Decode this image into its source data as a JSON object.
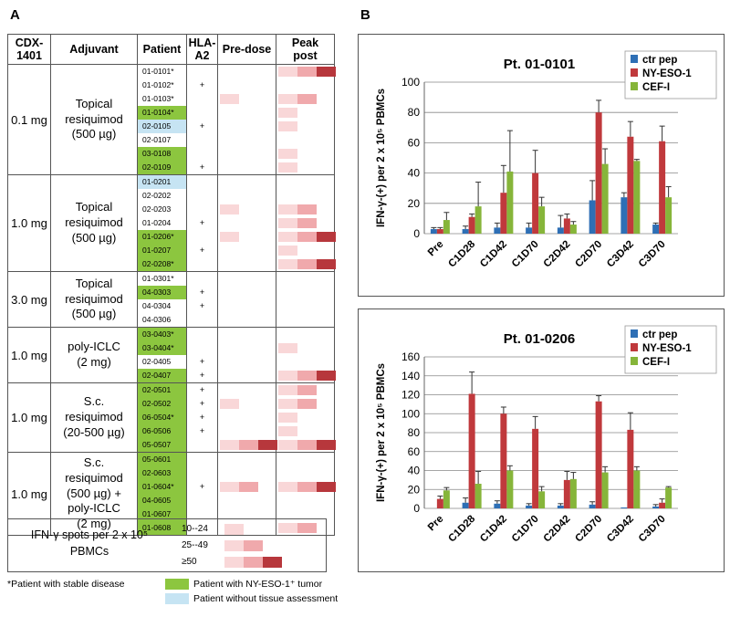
{
  "panel_a_label": "A",
  "panel_b_label": "B",
  "table": {
    "headers": {
      "dose": "CDX-\n1401",
      "adjuvant": "Adjuvant",
      "patient": "Patient",
      "hla": "HLA-\nA2",
      "predose": "Pre-dose",
      "peak": "Peak\npost"
    },
    "cohorts": [
      {
        "dose": "0.1 mg",
        "adjuvant": "Topical\nresiquimod\n(500 µg)",
        "patients": [
          {
            "id": "01-0101*",
            "hla": "",
            "color": "",
            "pre": 0,
            "peak": 3
          },
          {
            "id": "01-0102*",
            "hla": "+",
            "color": "",
            "pre": 0,
            "peak": 0
          },
          {
            "id": "01-0103*",
            "hla": "",
            "color": "",
            "pre": 1,
            "peak": 2
          },
          {
            "id": "01-0104*",
            "hla": "",
            "color": "green",
            "pre": 0,
            "peak": 1
          },
          {
            "id": "02-0105",
            "hla": "+",
            "color": "blue",
            "pre": 0,
            "peak": 1
          },
          {
            "id": "02-0107",
            "hla": "",
            "color": "",
            "pre": 0,
            "peak": 0
          },
          {
            "id": "03-0108",
            "hla": "",
            "color": "green",
            "pre": 0,
            "peak": 1
          },
          {
            "id": "02-0109",
            "hla": "+",
            "color": "green",
            "pre": 0,
            "peak": 1
          }
        ]
      },
      {
        "dose": "1.0 mg",
        "adjuvant": "Topical\nresiquimod\n(500 µg)",
        "patients": [
          {
            "id": "01-0201",
            "hla": "",
            "color": "blue",
            "pre": 0,
            "peak": 0
          },
          {
            "id": "02-0202",
            "hla": "",
            "color": "",
            "pre": 0,
            "peak": 0
          },
          {
            "id": "02-0203",
            "hla": "",
            "color": "",
            "pre": 1,
            "peak": 2
          },
          {
            "id": "01-0204",
            "hla": "+",
            "color": "",
            "pre": 0,
            "peak": 2
          },
          {
            "id": "01-0206*",
            "hla": "",
            "color": "green",
            "pre": 1,
            "peak": 3
          },
          {
            "id": "01-0207",
            "hla": "+",
            "color": "green",
            "pre": 0,
            "peak": 1
          },
          {
            "id": "02-0208*",
            "hla": "",
            "color": "green",
            "pre": 0,
            "peak": 3
          }
        ]
      },
      {
        "dose": "3.0 mg",
        "adjuvant": "Topical\nresiquimod\n(500 µg)",
        "patients": [
          {
            "id": "01-0301*",
            "hla": "",
            "color": "",
            "pre": 0,
            "peak": 0
          },
          {
            "id": "04-0303",
            "hla": "+",
            "color": "green",
            "pre": 0,
            "peak": 0
          },
          {
            "id": "04-0304",
            "hla": "+",
            "color": "",
            "pre": 0,
            "peak": 0
          },
          {
            "id": "04-0306",
            "hla": "",
            "color": "",
            "pre": 0,
            "peak": 0
          }
        ]
      },
      {
        "dose": "1.0 mg",
        "adjuvant": "poly-ICLC\n(2 mg)",
        "patients": [
          {
            "id": "03-0403*",
            "hla": "",
            "color": "green",
            "pre": 0,
            "peak": 0
          },
          {
            "id": "03-0404*",
            "hla": "",
            "color": "green",
            "pre": 0,
            "peak": 1
          },
          {
            "id": "02-0405",
            "hla": "+",
            "color": "",
            "pre": 0,
            "peak": 0
          },
          {
            "id": "02-0407",
            "hla": "+",
            "color": "green",
            "pre": 0,
            "peak": 3
          }
        ]
      },
      {
        "dose": "1.0 mg",
        "adjuvant": "S.c.\nresiquimod\n(20-500 µg)",
        "patients": [
          {
            "id": "02-0501",
            "hla": "+",
            "color": "green",
            "pre": 0,
            "peak": 2
          },
          {
            "id": "02-0502",
            "hla": "+",
            "color": "green",
            "pre": 1,
            "peak": 2
          },
          {
            "id": "06-0504*",
            "hla": "+",
            "color": "green",
            "pre": 0,
            "peak": 1
          },
          {
            "id": "06-0506",
            "hla": "+",
            "color": "green",
            "pre": 0,
            "peak": 1
          },
          {
            "id": "05-0507",
            "hla": "",
            "color": "green",
            "pre": 3,
            "peak": 3
          }
        ]
      },
      {
        "dose": "1.0 mg",
        "adjuvant": "S.c.\nresiquimod\n(500 µg) +\npoly-ICLC\n(2 mg)",
        "patients": [
          {
            "id": "05-0601",
            "hla": "",
            "color": "green",
            "pre": 0,
            "peak": 0
          },
          {
            "id": "02-0603",
            "hla": "",
            "color": "green",
            "pre": 0,
            "peak": 0
          },
          {
            "id": "01-0604*",
            "hla": "+",
            "color": "green",
            "pre": 2,
            "peak": 3
          },
          {
            "id": "04-0605",
            "hla": "",
            "color": "green",
            "pre": 0,
            "peak": 0
          },
          {
            "id": "01-0607",
            "hla": "",
            "color": "green",
            "pre": 0,
            "peak": 0
          },
          {
            "id": "01-0608",
            "hla": "",
            "color": "green",
            "pre": 0,
            "peak": 2
          }
        ]
      }
    ]
  },
  "legend": {
    "title": "IFN-γ spots per 2 x 10⁵\nPBMCs",
    "levels": [
      "10--24",
      "25--49",
      "≥50"
    ],
    "footnote": "*Patient with stable disease",
    "green_label": "Patient with NY-ESO-1⁺ tumor",
    "blue_label": "Patient without tissue assessment"
  },
  "colors": {
    "ctr_pep": "#2e6fb5",
    "nyeso": "#c0393c",
    "cef": "#86b53a",
    "green": "#8cc63f",
    "blue": "#c6e4f3",
    "heat1": "#f9d7d8",
    "heat2": "#f0a9ac",
    "heat3": "#b7373c"
  },
  "chart_data": [
    {
      "type": "bar",
      "title": "Pt. 01-0101",
      "ylabel": "IFN-γ-(+) per 2 x 10⁵ PBMCs",
      "ylim": [
        0,
        100
      ],
      "yticks": [
        0,
        20,
        40,
        60,
        80,
        100
      ],
      "categories": [
        "Pre",
        "C1D28",
        "C1D42",
        "C1D70",
        "C2D42",
        "C2D70",
        "C3D42",
        "C3D70"
      ],
      "series": [
        {
          "name": "ctr pep",
          "values": [
            3,
            3,
            4,
            4,
            4,
            22,
            24,
            6
          ],
          "errors": [
            1,
            2,
            3,
            3,
            8,
            13,
            3,
            1
          ]
        },
        {
          "name": "NY-ESO-1",
          "values": [
            3,
            11,
            27,
            40,
            10,
            80,
            64,
            61
          ],
          "errors": [
            1,
            2,
            18,
            15,
            3,
            8,
            10,
            10
          ]
        },
        {
          "name": "CEF-I",
          "values": [
            9,
            18,
            41,
            18,
            6,
            46,
            48,
            24
          ],
          "errors": [
            5,
            16,
            27,
            6,
            2,
            10,
            1,
            7
          ]
        }
      ]
    },
    {
      "type": "bar",
      "title": "Pt. 01-0206",
      "ylabel": "IFN-γ-(+) per 2 x 10⁵ PBMCs",
      "ylim": [
        0,
        160
      ],
      "yticks": [
        0,
        20,
        40,
        60,
        80,
        100,
        120,
        140,
        160
      ],
      "categories": [
        "Pre",
        "C1D28",
        "C1D42",
        "C1D70",
        "C2D42",
        "C2D70",
        "C3D42",
        "C3D70"
      ],
      "series": [
        {
          "name": "ctr pep",
          "values": [
            0,
            6,
            5,
            3,
            3,
            4,
            1,
            2
          ],
          "errors": [
            0,
            5,
            3,
            2,
            2,
            3,
            0,
            2
          ]
        },
        {
          "name": "NY-ESO-1",
          "values": [
            10,
            121,
            100,
            84,
            30,
            113,
            83,
            6
          ],
          "errors": [
            3,
            23,
            7,
            13,
            9,
            6,
            18,
            4
          ]
        },
        {
          "name": "CEF-I",
          "values": [
            19,
            26,
            40,
            18,
            31,
            38,
            40,
            22
          ],
          "errors": [
            3,
            13,
            5,
            5,
            7,
            6,
            4,
            1
          ]
        }
      ]
    }
  ]
}
